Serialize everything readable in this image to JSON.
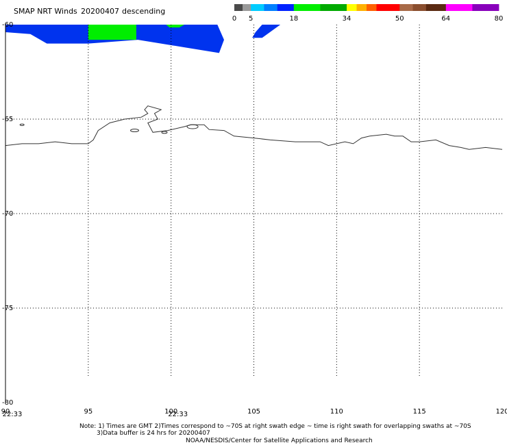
{
  "title": "SMAP NRT Winds",
  "date": "20200407",
  "pass": "descending",
  "colorbar": {
    "tick_labels": [
      "0",
      "5",
      "18",
      "34",
      "50",
      "64",
      "80"
    ],
    "tick_values": [
      0,
      5,
      18,
      34,
      50,
      64,
      80
    ],
    "segments": [
      {
        "from": 0,
        "to": 2.5,
        "color": "#4a4a4a"
      },
      {
        "from": 2.5,
        "to": 5,
        "color": "#9a9a9a"
      },
      {
        "from": 5,
        "to": 9,
        "color": "#00ccff"
      },
      {
        "from": 9,
        "to": 13,
        "color": "#0080ff"
      },
      {
        "from": 13,
        "to": 18,
        "color": "#0022ff"
      },
      {
        "from": 18,
        "to": 26,
        "color": "#00ee00"
      },
      {
        "from": 26,
        "to": 34,
        "color": "#00aa00"
      },
      {
        "from": 34,
        "to": 37,
        "color": "#ffff00"
      },
      {
        "from": 37,
        "to": 40,
        "color": "#ffb000"
      },
      {
        "from": 40,
        "to": 43,
        "color": "#ff6000"
      },
      {
        "from": 43,
        "to": 50,
        "color": "#ff0000"
      },
      {
        "from": 50,
        "to": 54,
        "color": "#a86a48"
      },
      {
        "from": 54,
        "to": 58,
        "color": "#8a4e2e"
      },
      {
        "from": 58,
        "to": 64,
        "color": "#5a2a12"
      },
      {
        "from": 64,
        "to": 72,
        "color": "#ff00ff"
      },
      {
        "from": 72,
        "to": 80,
        "color": "#8800bb"
      }
    ]
  },
  "lat_labels": [
    "-60",
    "-65",
    "-70",
    "-75",
    "-80"
  ],
  "lon_labels": [
    "90",
    "95",
    "100",
    "105",
    "110",
    "115",
    "120"
  ],
  "lat_range": [
    -80,
    -60
  ],
  "lon_range": [
    90,
    120
  ],
  "grid_lat": [
    -65,
    -70,
    -75
  ],
  "grid_lon": [
    95,
    100,
    105,
    110,
    115
  ],
  "grid_lat_max": -78.6,
  "swath_times": [
    "22:33",
    "22:33"
  ],
  "swath_time_lons": [
    90,
    100
  ],
  "swaths": [
    {
      "color": "#0033ee",
      "polygon": [
        [
          90.0,
          -60.0
        ],
        [
          102.8,
          -60.0
        ],
        [
          103.2,
          -60.8
        ],
        [
          102.9,
          -61.5
        ],
        [
          100.8,
          -61.2
        ],
        [
          98.0,
          -60.8
        ],
        [
          95.0,
          -61.0
        ],
        [
          92.5,
          -61.0
        ],
        [
          91.5,
          -60.5
        ],
        [
          90.0,
          -60.4
        ]
      ]
    },
    {
      "color": "#00ee00",
      "polygon": [
        [
          95.0,
          -60.0
        ],
        [
          97.9,
          -60.0
        ],
        [
          97.9,
          -60.8
        ],
        [
          95.0,
          -60.8
        ]
      ]
    },
    {
      "color": "#00ee00",
      "polygon": [
        [
          99.7,
          -60.0
        ],
        [
          100.8,
          -60.0
        ],
        [
          100.5,
          -60.15
        ],
        [
          99.9,
          -60.15
        ]
      ]
    },
    {
      "color": "#0033ee",
      "polygon": [
        [
          105.5,
          -60.0
        ],
        [
          106.6,
          -60.0
        ],
        [
          105.5,
          -60.7
        ],
        [
          104.9,
          -60.7
        ],
        [
          105.1,
          -60.4
        ]
      ]
    }
  ],
  "coastline": [
    [
      [
        90.0,
        -66.4
      ],
      [
        91.0,
        -66.3
      ],
      [
        92.0,
        -66.3
      ],
      [
        93.0,
        -66.2
      ],
      [
        94.0,
        -66.3
      ],
      [
        95.0,
        -66.3
      ],
      [
        95.3,
        -66.1
      ],
      [
        95.6,
        -65.6
      ],
      [
        96.3,
        -65.2
      ],
      [
        97.2,
        -65.0
      ],
      [
        98.2,
        -64.9
      ],
      [
        98.6,
        -64.7
      ],
      [
        98.4,
        -64.5
      ],
      [
        98.6,
        -64.3
      ],
      [
        99.4,
        -64.5
      ],
      [
        99.0,
        -64.7
      ],
      [
        99.2,
        -65.0
      ],
      [
        98.6,
        -65.2
      ],
      [
        98.9,
        -65.7
      ],
      [
        99.8,
        -65.6
      ],
      [
        100.8,
        -65.4
      ],
      [
        101.2,
        -65.3
      ],
      [
        102.0,
        -65.3
      ],
      [
        102.3,
        -65.55
      ],
      [
        103.2,
        -65.6
      ],
      [
        103.8,
        -65.9
      ],
      [
        105.0,
        -66.0
      ],
      [
        106.0,
        -66.1
      ],
      [
        107.5,
        -66.2
      ],
      [
        109.0,
        -66.2
      ],
      [
        109.5,
        -66.4
      ],
      [
        110.5,
        -66.2
      ],
      [
        111.0,
        -66.3
      ],
      [
        111.5,
        -66.0
      ],
      [
        112.0,
        -65.9
      ],
      [
        113.0,
        -65.8
      ],
      [
        113.5,
        -65.9
      ],
      [
        114.0,
        -65.9
      ],
      [
        114.5,
        -66.2
      ],
      [
        115.0,
        -66.2
      ],
      [
        116.0,
        -66.1
      ],
      [
        116.8,
        -66.4
      ],
      [
        117.5,
        -66.5
      ],
      [
        118.0,
        -66.6
      ],
      [
        119.0,
        -66.5
      ],
      [
        120.0,
        -66.6
      ]
    ]
  ]
}
